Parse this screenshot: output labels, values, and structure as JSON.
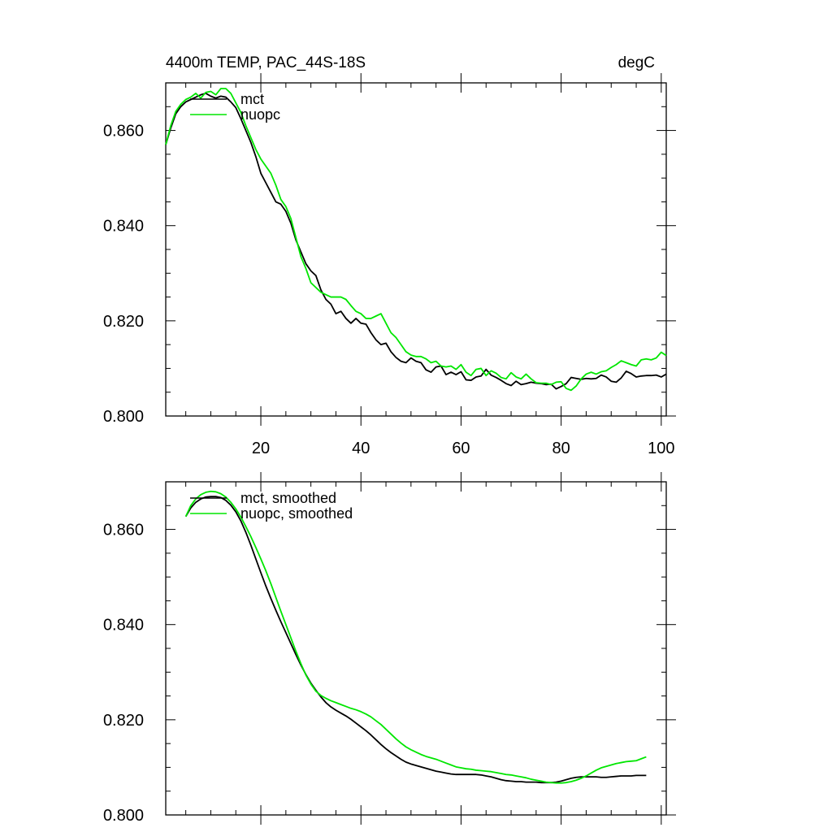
{
  "figure": {
    "title_left": "4400m TEMP, PAC_44S-18S",
    "title_right": "degC"
  },
  "colors": {
    "mct": "#000000",
    "nuopc": "#00e600",
    "axis": "#000000"
  },
  "chart_data": [
    {
      "type": "line",
      "title": "4400m TEMP, PAC_44S-18S",
      "units": "degC",
      "xlabel": "",
      "ylabel": "",
      "xlim": [
        1,
        101
      ],
      "ylim": [
        0.8,
        0.87
      ],
      "xticks": [
        20,
        40,
        60,
        80,
        100
      ],
      "xtick_labels": [
        "20",
        "40",
        "60",
        "80",
        "100"
      ],
      "yticks": [
        0.8,
        0.82,
        0.84,
        0.86
      ],
      "ytick_labels": [
        "0.800",
        "0.820",
        "0.840",
        "0.860"
      ],
      "legend": "top-left",
      "series": [
        {
          "name": "mct",
          "color": "#000000",
          "x": [
            1,
            2,
            3,
            4,
            5,
            6,
            7,
            8,
            9,
            10,
            11,
            12,
            13,
            14,
            15,
            16,
            17,
            18,
            19,
            20,
            21,
            22,
            23,
            24,
            25,
            26,
            27,
            28,
            29,
            30,
            31,
            32,
            33,
            34,
            35,
            36,
            37,
            38,
            39,
            40,
            41,
            42,
            43,
            44,
            45,
            46,
            47,
            48,
            49,
            50,
            51,
            52,
            53,
            54,
            55,
            56,
            57,
            58,
            59,
            60,
            61,
            62,
            63,
            64,
            65,
            66,
            67,
            68,
            69,
            70,
            71,
            72,
            73,
            74,
            75,
            76,
            77,
            78,
            79,
            80,
            81,
            82,
            83,
            84,
            85,
            86,
            87,
            88,
            89,
            90,
            91,
            92,
            93,
            94,
            95,
            96,
            97,
            98,
            99,
            100,
            101
          ],
          "values": [
            0.857,
            0.8605,
            0.8635,
            0.865,
            0.866,
            0.8665,
            0.867,
            0.8675,
            0.8678,
            0.8672,
            0.8668,
            0.8672,
            0.867,
            0.866,
            0.8648,
            0.8625,
            0.86,
            0.8575,
            0.8545,
            0.851,
            0.849,
            0.847,
            0.845,
            0.8445,
            0.843,
            0.8405,
            0.837,
            0.8345,
            0.832,
            0.8305,
            0.8295,
            0.8265,
            0.8245,
            0.8235,
            0.8215,
            0.822,
            0.8205,
            0.8195,
            0.8205,
            0.8195,
            0.8193,
            0.8175,
            0.816,
            0.815,
            0.8153,
            0.8135,
            0.8123,
            0.8115,
            0.8112,
            0.8122,
            0.8115,
            0.8112,
            0.8097,
            0.8092,
            0.8103,
            0.8105,
            0.8087,
            0.8092,
            0.8087,
            0.8093,
            0.8076,
            0.8075,
            0.8082,
            0.8084,
            0.8098,
            0.8086,
            0.8081,
            0.8075,
            0.8068,
            0.8064,
            0.8073,
            0.8066,
            0.8068,
            0.8071,
            0.8069,
            0.8068,
            0.8066,
            0.8067,
            0.8057,
            0.8062,
            0.8068,
            0.8081,
            0.8079,
            0.8077,
            0.8079,
            0.8078,
            0.8079,
            0.8086,
            0.8082,
            0.8073,
            0.8071,
            0.808,
            0.8094,
            0.8089,
            0.8082,
            0.8084,
            0.8085,
            0.8085,
            0.8086,
            0.8082,
            0.8088
          ]
        },
        {
          "name": "nuopc",
          "color": "#00e600",
          "x": [
            1,
            2,
            3,
            4,
            5,
            6,
            7,
            8,
            9,
            10,
            11,
            12,
            13,
            14,
            15,
            16,
            17,
            18,
            19,
            20,
            21,
            22,
            23,
            24,
            25,
            26,
            27,
            28,
            29,
            30,
            31,
            32,
            33,
            34,
            35,
            36,
            37,
            38,
            39,
            40,
            41,
            42,
            43,
            44,
            45,
            46,
            47,
            48,
            49,
            50,
            51,
            52,
            53,
            54,
            55,
            56,
            57,
            58,
            59,
            60,
            61,
            62,
            63,
            64,
            65,
            66,
            67,
            68,
            69,
            70,
            71,
            72,
            73,
            74,
            75,
            76,
            77,
            78,
            79,
            80,
            81,
            82,
            83,
            84,
            85,
            86,
            87,
            88,
            89,
            90,
            91,
            92,
            93,
            94,
            95,
            96,
            97,
            98,
            99,
            100,
            101
          ],
          "values": [
            0.857,
            0.861,
            0.864,
            0.8655,
            0.8665,
            0.867,
            0.8678,
            0.8668,
            0.868,
            0.8682,
            0.8675,
            0.8688,
            0.8688,
            0.8678,
            0.8658,
            0.8638,
            0.861,
            0.8585,
            0.856,
            0.854,
            0.8525,
            0.851,
            0.8485,
            0.8455,
            0.844,
            0.8415,
            0.8375,
            0.8335,
            0.831,
            0.828,
            0.827,
            0.826,
            0.8255,
            0.825,
            0.825,
            0.825,
            0.8245,
            0.8232,
            0.822,
            0.8215,
            0.8205,
            0.8205,
            0.821,
            0.8215,
            0.8195,
            0.8175,
            0.8165,
            0.815,
            0.8135,
            0.8128,
            0.8125,
            0.8125,
            0.812,
            0.8112,
            0.8115,
            0.8105,
            0.8103,
            0.8105,
            0.8098,
            0.8108,
            0.8092,
            0.8085,
            0.8098,
            0.81,
            0.8085,
            0.8095,
            0.809,
            0.8081,
            0.8078,
            0.8091,
            0.8082,
            0.8078,
            0.8088,
            0.8078,
            0.807,
            0.8069,
            0.8069,
            0.8066,
            0.8071,
            0.8072,
            0.8058,
            0.8054,
            0.8063,
            0.8078,
            0.8088,
            0.8092,
            0.8088,
            0.8093,
            0.8095,
            0.8102,
            0.8108,
            0.8116,
            0.8112,
            0.8108,
            0.8105,
            0.8118,
            0.812,
            0.8118,
            0.8122,
            0.8134,
            0.8127
          ]
        }
      ]
    },
    {
      "type": "line",
      "title": "",
      "xlabel": "",
      "ylabel": "",
      "xlim": [
        1,
        101
      ],
      "ylim": [
        0.8,
        0.87
      ],
      "xticks": [
        20,
        40,
        60,
        80,
        100
      ],
      "xtick_labels": [],
      "yticks": [
        0.8,
        0.82,
        0.84,
        0.86
      ],
      "ytick_labels": [
        "0.800",
        "0.820",
        "0.840",
        "0.860"
      ],
      "legend": "top-left",
      "series": [
        {
          "name": "mct, smoothed",
          "color": "#000000",
          "x": [
            5,
            6,
            7,
            8,
            9,
            10,
            11,
            12,
            13,
            14,
            15,
            16,
            17,
            18,
            19,
            20,
            21,
            22,
            23,
            24,
            25,
            26,
            27,
            28,
            29,
            30,
            31,
            32,
            33,
            34,
            35,
            36,
            37,
            38,
            39,
            40,
            41,
            42,
            43,
            44,
            45,
            46,
            47,
            48,
            49,
            50,
            51,
            52,
            53,
            54,
            55,
            56,
            57,
            58,
            59,
            60,
            61,
            62,
            63,
            64,
            65,
            66,
            67,
            68,
            69,
            70,
            71,
            72,
            73,
            74,
            75,
            76,
            77,
            78,
            79,
            80,
            81,
            82,
            83,
            84,
            85,
            86,
            87,
            88,
            89,
            90,
            91,
            92,
            93,
            94,
            95,
            96,
            97
          ],
          "values": [
            0.8627,
            0.8645,
            0.8657,
            0.8664,
            0.8668,
            0.8669,
            0.8669,
            0.8667,
            0.8661,
            0.8651,
            0.8637,
            0.8618,
            0.8594,
            0.8567,
            0.8538,
            0.8509,
            0.8481,
            0.8455,
            0.843,
            0.8406,
            0.8383,
            0.836,
            0.8337,
            0.8315,
            0.8295,
            0.8277,
            0.8262,
            0.8248,
            0.8236,
            0.8227,
            0.822,
            0.8214,
            0.8208,
            0.8201,
            0.8193,
            0.8185,
            0.8177,
            0.8168,
            0.8158,
            0.8148,
            0.8139,
            0.8131,
            0.8124,
            0.8117,
            0.8111,
            0.8107,
            0.8104,
            0.8101,
            0.8098,
            0.8095,
            0.8092,
            0.809,
            0.8088,
            0.8086,
            0.8085,
            0.8085,
            0.8085,
            0.8085,
            0.8085,
            0.8084,
            0.8082,
            0.808,
            0.8077,
            0.8074,
            0.8072,
            0.8071,
            0.807,
            0.807,
            0.8069,
            0.8069,
            0.8069,
            0.8068,
            0.8068,
            0.8068,
            0.8069,
            0.8071,
            0.8074,
            0.8077,
            0.8079,
            0.808,
            0.808,
            0.808,
            0.808,
            0.8079,
            0.8079,
            0.808,
            0.8081,
            0.8082,
            0.8082,
            0.8082,
            0.8083,
            0.8083,
            0.8083
          ]
        },
        {
          "name": "nuopc, smoothed",
          "color": "#00e600",
          "x": [
            5,
            6,
            7,
            8,
            9,
            10,
            11,
            12,
            13,
            14,
            15,
            16,
            17,
            18,
            19,
            20,
            21,
            22,
            23,
            24,
            25,
            26,
            27,
            28,
            29,
            30,
            31,
            32,
            33,
            34,
            35,
            36,
            37,
            38,
            39,
            40,
            41,
            42,
            43,
            44,
            45,
            46,
            47,
            48,
            49,
            50,
            51,
            52,
            53,
            54,
            55,
            56,
            57,
            58,
            59,
            60,
            61,
            62,
            63,
            64,
            65,
            66,
            67,
            68,
            69,
            70,
            71,
            72,
            73,
            74,
            75,
            76,
            77,
            78,
            79,
            80,
            81,
            82,
            83,
            84,
            85,
            86,
            87,
            88,
            89,
            90,
            91,
            92,
            93,
            94,
            95,
            96,
            97
          ],
          "values": [
            0.8627,
            0.865,
            0.8664,
            0.8673,
            0.8678,
            0.868,
            0.8679,
            0.8675,
            0.8668,
            0.8657,
            0.8643,
            0.8626,
            0.8606,
            0.8585,
            0.8562,
            0.8538,
            0.8513,
            0.8486,
            0.8457,
            0.8428,
            0.84,
            0.8372,
            0.8344,
            0.8318,
            0.8294,
            0.8275,
            0.826,
            0.8251,
            0.8245,
            0.824,
            0.8236,
            0.8232,
            0.8228,
            0.8224,
            0.8221,
            0.8217,
            0.8212,
            0.8206,
            0.8198,
            0.819,
            0.818,
            0.817,
            0.816,
            0.8151,
            0.8143,
            0.8137,
            0.8132,
            0.8127,
            0.8123,
            0.812,
            0.8117,
            0.8113,
            0.8109,
            0.8105,
            0.8101,
            0.8099,
            0.8097,
            0.8096,
            0.8094,
            0.8093,
            0.8092,
            0.8091,
            0.8089,
            0.8087,
            0.8085,
            0.8084,
            0.8082,
            0.808,
            0.8078,
            0.8075,
            0.8073,
            0.8071,
            0.8069,
            0.8068,
            0.8067,
            0.8067,
            0.8068,
            0.807,
            0.8073,
            0.8077,
            0.8082,
            0.8088,
            0.8094,
            0.8099,
            0.8102,
            0.8105,
            0.8108,
            0.811,
            0.8112,
            0.8113,
            0.8114,
            0.8118,
            0.8122
          ]
        }
      ]
    }
  ]
}
